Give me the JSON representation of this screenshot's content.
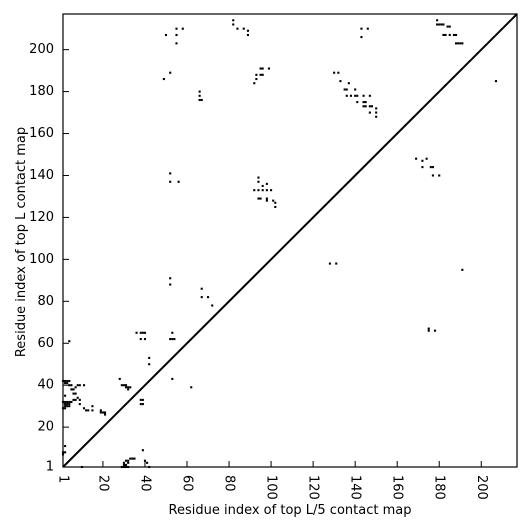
{
  "chart_data": {
    "type": "scatter",
    "xlabel": "Residue index of top L/5 contact map",
    "ylabel": "Residue index of top L contact map",
    "xlim": [
      1,
      217
    ],
    "ylim": [
      1,
      217
    ],
    "xticks": [
      {
        "value": 1,
        "label": "1"
      },
      {
        "value": 20,
        "label": "20"
      },
      {
        "value": 40,
        "label": "40"
      },
      {
        "value": 60,
        "label": "60"
      },
      {
        "value": 80,
        "label": "80"
      },
      {
        "value": 100,
        "label": "100"
      },
      {
        "value": 120,
        "label": "120"
      },
      {
        "value": 140,
        "label": "140"
      },
      {
        "value": 160,
        "label": "160"
      },
      {
        "value": 180,
        "label": "180"
      },
      {
        "value": 200,
        "label": "200"
      }
    ],
    "yticks": [
      {
        "value": 1,
        "label": "1"
      },
      {
        "value": 20,
        "label": "20"
      },
      {
        "value": 40,
        "label": "40"
      },
      {
        "value": 60,
        "label": "60"
      },
      {
        "value": 80,
        "label": "80"
      },
      {
        "value": 100,
        "label": "100"
      },
      {
        "value": 120,
        "label": "120"
      },
      {
        "value": 140,
        "label": "140"
      },
      {
        "value": 160,
        "label": "160"
      },
      {
        "value": 180,
        "label": "180"
      },
      {
        "value": 200,
        "label": "200"
      }
    ],
    "diagonal": true,
    "grid": false,
    "lower_triangle": [
      [
        1,
        8
      ],
      [
        2,
        8
      ],
      [
        1,
        7
      ],
      [
        2,
        11
      ],
      [
        1,
        42
      ],
      [
        2,
        42
      ],
      [
        3,
        42
      ],
      [
        4,
        42
      ],
      [
        2,
        41
      ],
      [
        3,
        41
      ],
      [
        4,
        40
      ],
      [
        5,
        40
      ],
      [
        5,
        38
      ],
      [
        6,
        38
      ],
      [
        6,
        36
      ],
      [
        7,
        36
      ],
      [
        1,
        32
      ],
      [
        2,
        32
      ],
      [
        3,
        32
      ],
      [
        4,
        32
      ],
      [
        5,
        32
      ],
      [
        2,
        31
      ],
      [
        3,
        31
      ],
      [
        4,
        31
      ],
      [
        2,
        30
      ],
      [
        3,
        30
      ],
      [
        4,
        30
      ],
      [
        1,
        29
      ],
      [
        2,
        29
      ],
      [
        2,
        35
      ],
      [
        6,
        33
      ],
      [
        7,
        33
      ],
      [
        8,
        34
      ],
      [
        4,
        61
      ],
      [
        7,
        39
      ],
      [
        8,
        40
      ],
      [
        9,
        40
      ],
      [
        9,
        33
      ],
      [
        11,
        40
      ],
      [
        11,
        29
      ],
      [
        12,
        28
      ],
      [
        13,
        28
      ],
      [
        15,
        30
      ],
      [
        15,
        28
      ],
      [
        9,
        31
      ],
      [
        10,
        1
      ],
      [
        19,
        28
      ],
      [
        19,
        27
      ],
      [
        20,
        27
      ],
      [
        21,
        27
      ],
      [
        21,
        26
      ],
      [
        29,
        1
      ],
      [
        30,
        1
      ],
      [
        31,
        1
      ],
      [
        32,
        1
      ],
      [
        30,
        2
      ],
      [
        31,
        2
      ],
      [
        30,
        3
      ],
      [
        32,
        3
      ],
      [
        31,
        4
      ],
      [
        32,
        4
      ],
      [
        33,
        5
      ],
      [
        34,
        5
      ],
      [
        35,
        5
      ],
      [
        29,
        40
      ],
      [
        30,
        40
      ],
      [
        31,
        40
      ],
      [
        31,
        39
      ],
      [
        32,
        39
      ],
      [
        32,
        38
      ],
      [
        33,
        39
      ],
      [
        28,
        43
      ],
      [
        36,
        65
      ],
      [
        38,
        65
      ],
      [
        39,
        65
      ],
      [
        40,
        65
      ],
      [
        38,
        62
      ],
      [
        40,
        62
      ],
      [
        38,
        33
      ],
      [
        39,
        33
      ],
      [
        39,
        31
      ],
      [
        38,
        31
      ],
      [
        39,
        9
      ],
      [
        40,
        4
      ],
      [
        41,
        3
      ],
      [
        42,
        1
      ],
      [
        42,
        50
      ],
      [
        42,
        53
      ],
      [
        52,
        62
      ],
      [
        53,
        62
      ],
      [
        54,
        62
      ],
      [
        53,
        65
      ],
      [
        53,
        43
      ],
      [
        62,
        39
      ],
      [
        67,
        86
      ],
      [
        67,
        82
      ],
      [
        70,
        82
      ],
      [
        72,
        78
      ]
    ],
    "upper_triangle": [
      [
        50,
        207
      ],
      [
        55,
        207
      ],
      [
        55,
        203
      ],
      [
        55,
        210
      ],
      [
        58,
        210
      ],
      [
        82,
        214
      ],
      [
        82,
        212
      ],
      [
        84,
        210
      ],
      [
        87,
        210
      ],
      [
        89,
        209
      ],
      [
        89,
        207
      ],
      [
        49,
        186
      ],
      [
        52,
        189
      ],
      [
        66,
        180
      ],
      [
        66,
        178
      ],
      [
        66,
        176
      ],
      [
        67,
        176
      ],
      [
        52,
        141
      ],
      [
        52,
        137
      ],
      [
        56,
        137
      ],
      [
        92,
        133
      ],
      [
        94,
        133
      ],
      [
        94,
        139
      ],
      [
        94,
        137
      ],
      [
        96,
        135
      ],
      [
        98,
        136
      ],
      [
        96,
        133
      ],
      [
        98,
        133
      ],
      [
        100,
        133
      ],
      [
        94,
        129
      ],
      [
        95,
        129
      ],
      [
        98,
        129
      ],
      [
        98,
        128
      ],
      [
        101,
        128
      ],
      [
        102,
        127
      ],
      [
        102,
        125
      ],
      [
        93,
        188
      ],
      [
        93,
        186
      ],
      [
        95,
        188
      ],
      [
        96,
        188
      ],
      [
        95,
        191
      ],
      [
        96,
        191
      ],
      [
        99,
        191
      ],
      [
        92,
        184
      ],
      [
        130,
        189
      ],
      [
        132,
        189
      ],
      [
        133,
        185
      ],
      [
        135,
        181
      ],
      [
        136,
        181
      ],
      [
        136,
        178
      ],
      [
        137,
        184
      ],
      [
        138,
        178
      ],
      [
        140,
        178
      ],
      [
        141,
        178
      ],
      [
        140,
        181
      ],
      [
        141,
        175
      ],
      [
        144,
        175
      ],
      [
        145,
        175
      ],
      [
        144,
        173
      ],
      [
        145,
        173
      ],
      [
        147,
        173
      ],
      [
        148,
        173
      ],
      [
        144,
        178
      ],
      [
        147,
        178
      ],
      [
        147,
        170
      ],
      [
        150,
        170
      ],
      [
        150,
        168
      ],
      [
        150,
        172
      ],
      [
        143,
        206
      ],
      [
        143,
        210
      ],
      [
        146,
        210
      ],
      [
        52,
        91
      ],
      [
        52,
        88
      ],
      [
        128,
        98
      ],
      [
        131,
        98
      ],
      [
        169,
        148
      ],
      [
        172,
        147
      ],
      [
        172,
        144
      ],
      [
        174,
        148
      ],
      [
        176,
        144
      ],
      [
        177,
        144
      ],
      [
        177,
        140
      ],
      [
        180,
        140
      ],
      [
        191,
        95
      ],
      [
        207,
        185
      ],
      [
        175,
        67
      ],
      [
        175,
        66
      ],
      [
        178,
        66
      ],
      [
        179,
        214
      ],
      [
        179,
        212
      ],
      [
        180,
        212
      ],
      [
        181,
        212
      ],
      [
        182,
        212
      ],
      [
        182,
        207
      ],
      [
        183,
        207
      ],
      [
        185,
        207
      ],
      [
        184,
        211
      ],
      [
        185,
        211
      ],
      [
        187,
        207
      ],
      [
        188,
        207
      ],
      [
        188,
        203
      ],
      [
        189,
        203
      ],
      [
        190,
        203
      ],
      [
        191,
        203
      ]
    ]
  }
}
